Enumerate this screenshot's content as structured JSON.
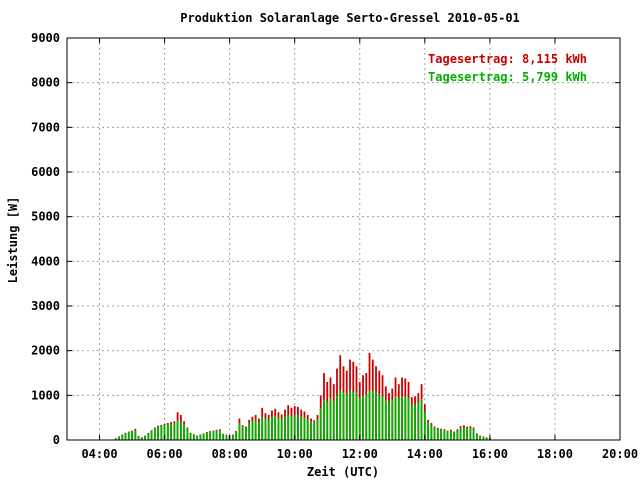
{
  "chart_data": {
    "type": "bar",
    "title": "Produktion Solaranlage Serto-Gressel 2010-05-01",
    "xlabel": "Zeit (UTC)",
    "ylabel": "Leistung [W]",
    "xlim_hours": [
      3,
      20
    ],
    "ylim": [
      0,
      9000
    ],
    "grid": true,
    "legend_position": "top-right",
    "x_ticks": [
      "04:00",
      "06:00",
      "08:00",
      "10:00",
      "12:00",
      "14:00",
      "16:00",
      "18:00",
      "20:00"
    ],
    "y_ticks": [
      "0",
      "1000",
      "2000",
      "3000",
      "4000",
      "5000",
      "6000",
      "7000",
      "8000",
      "9000"
    ],
    "x_tick_values": [
      4,
      6,
      8,
      10,
      12,
      14,
      16,
      18,
      20
    ],
    "y_tick_values": [
      0,
      1000,
      2000,
      3000,
      4000,
      5000,
      6000,
      7000,
      8000,
      9000
    ],
    "bar_step_hours": 0.1,
    "x_start_hour": 4.5,
    "colors": {
      "series_1": "#cc0000",
      "series_2": "#00b000",
      "grid": "#a0a0a0",
      "axis": "#000000"
    },
    "series": [
      {
        "name": "Tagesertrag: 8,115 kWh",
        "color": "#cc0000",
        "values": [
          40,
          80,
          120,
          160,
          190,
          210,
          250,
          90,
          60,
          100,
          160,
          220,
          280,
          320,
          340,
          360,
          380,
          400,
          420,
          620,
          560,
          420,
          280,
          160,
          130,
          100,
          120,
          150,
          180,
          200,
          210,
          230,
          240,
          140,
          120,
          100,
          120,
          200,
          480,
          330,
          300,
          450,
          520,
          560,
          480,
          720,
          600,
          560,
          660,
          700,
          620,
          570,
          680,
          780,
          720,
          760,
          740,
          680,
          640,
          560,
          480,
          440,
          560,
          1000,
          1500,
          1300,
          1400,
          1250,
          1600,
          1900,
          1650,
          1550,
          1800,
          1750,
          1650,
          1300,
          1450,
          1500,
          1950,
          1800,
          1650,
          1550,
          1450,
          1200,
          1050,
          1150,
          1400,
          1250,
          1400,
          1380,
          1300,
          960,
          980,
          1050,
          1250,
          800,
          450,
          380,
          300,
          270,
          250,
          240,
          210,
          230,
          190,
          240,
          310,
          330,
          300,
          310,
          280,
          150,
          100,
          80,
          60,
          50
        ]
      },
      {
        "name": "Tagesertrag: 5,799 kWh",
        "color": "#00b000",
        "values": [
          40,
          80,
          120,
          160,
          190,
          210,
          220,
          90,
          60,
          100,
          150,
          210,
          260,
          300,
          320,
          340,
          350,
          360,
          380,
          440,
          400,
          360,
          260,
          150,
          120,
          100,
          120,
          140,
          170,
          190,
          200,
          210,
          220,
          130,
          110,
          90,
          110,
          180,
          380,
          300,
          280,
          390,
          420,
          460,
          400,
          520,
          480,
          460,
          520,
          540,
          500,
          480,
          520,
          560,
          540,
          560,
          550,
          520,
          500,
          460,
          420,
          400,
          460,
          720,
          900,
          860,
          940,
          880,
          1000,
          1100,
          1060,
          1040,
          1100,
          1080,
          1060,
          940,
          1000,
          1020,
          1120,
          1100,
          1060,
          1020,
          980,
          900,
          860,
          900,
          980,
          940,
          980,
          970,
          940,
          780,
          800,
          840,
          920,
          640,
          400,
          340,
          280,
          250,
          230,
          220,
          200,
          210,
          180,
          220,
          270,
          280,
          260,
          270,
          250,
          140,
          90,
          70,
          55,
          45
        ]
      }
    ]
  }
}
